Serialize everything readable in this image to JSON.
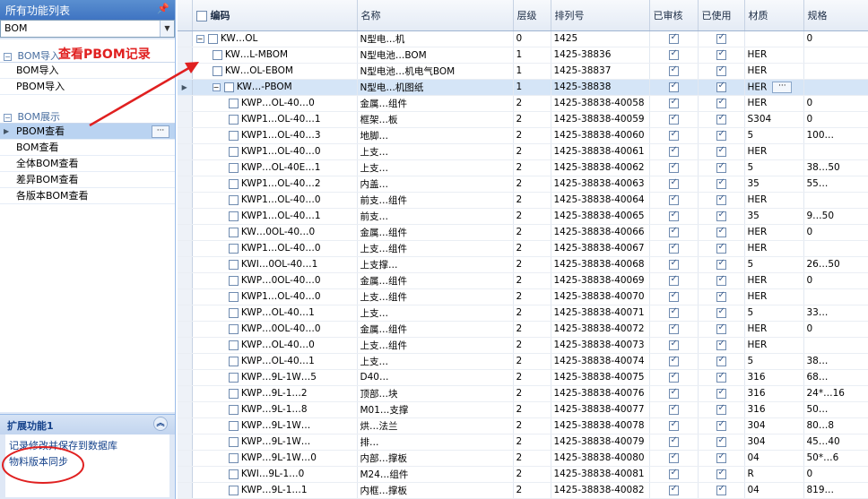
{
  "left_panel": {
    "title": "所有功能列表",
    "combo_value": "BOM",
    "group1": {
      "title": "BOM导入",
      "items": [
        "BOM导入",
        "PBOM导入"
      ]
    },
    "group2": {
      "title": "BOM展示",
      "items": [
        "PBOM查看",
        "BOM查看",
        "全体BOM查看",
        "差异BOM查看",
        "各版本BOM查看"
      ]
    },
    "ext": {
      "title": "扩展功能1",
      "links": [
        "记录修改并保存到数据库",
        "物料版本同步"
      ]
    }
  },
  "annotation": {
    "text": "查看PBOM记录",
    "color": "#e02020"
  },
  "grid": {
    "headers": [
      "编码",
      "名称",
      "层级",
      "排列号",
      "已审核",
      "已使用",
      "材质",
      "规格"
    ],
    "rows": [
      {
        "code": "KW…OL",
        "name": "N型电…机",
        "level": "0",
        "seq": "1425",
        "audited": true,
        "used": true,
        "material": "",
        "spec": "0",
        "depth": 0,
        "tree": "⊟"
      },
      {
        "code": "KW…L-MBOM",
        "name": "N型电池…BOM",
        "level": "1",
        "seq": "1425-38836",
        "audited": true,
        "used": true,
        "material": "HER",
        "spec": "",
        "depth": 1
      },
      {
        "code": "KW…OL-EBOM",
        "name": "N型电池…机电气BOM",
        "level": "1",
        "seq": "1425-38837",
        "audited": true,
        "used": true,
        "material": "HER",
        "spec": "",
        "depth": 1
      },
      {
        "code": "KW…-PBOM",
        "name": "N型电…机图纸",
        "level": "1",
        "seq": "1425-38838",
        "audited": true,
        "used": true,
        "material": "HER",
        "spec": "",
        "depth": 1,
        "tree": "⊟",
        "selected": true
      },
      {
        "code": "KWP…OL-40…0",
        "name": "金属…组件",
        "level": "2",
        "seq": "1425-38838-40058",
        "audited": true,
        "used": true,
        "material": "HER",
        "spec": "0",
        "depth": 2
      },
      {
        "code": "KWP1…OL-40…1",
        "name": "框架…板",
        "level": "2",
        "seq": "1425-38838-40059",
        "audited": true,
        "used": true,
        "material": "S304",
        "spec": "0",
        "depth": 2
      },
      {
        "code": "KWP1…OL-40…3",
        "name": "地脚…",
        "level": "2",
        "seq": "1425-38838-40060",
        "audited": true,
        "used": true,
        "material": "5",
        "spec": "100…",
        "depth": 2
      },
      {
        "code": "KWP1…OL-40…0",
        "name": "上支…",
        "level": "2",
        "seq": "1425-38838-40061",
        "audited": true,
        "used": true,
        "material": "HER",
        "spec": "",
        "depth": 2
      },
      {
        "code": "KWP…OL-40E…1",
        "name": "上支…",
        "level": "2",
        "seq": "1425-38838-40062",
        "audited": true,
        "used": true,
        "material": "5",
        "spec": "38…50",
        "depth": 2
      },
      {
        "code": "KWP1…OL-40…2",
        "name": "内盖…",
        "level": "2",
        "seq": "1425-38838-40063",
        "audited": true,
        "used": true,
        "material": "35",
        "spec": "55…",
        "depth": 2
      },
      {
        "code": "KWP1…OL-40…0",
        "name": "前支…组件",
        "level": "2",
        "seq": "1425-38838-40064",
        "audited": true,
        "used": true,
        "material": "HER",
        "spec": "",
        "depth": 2
      },
      {
        "code": "KWP1…OL-40…1",
        "name": "前支…",
        "level": "2",
        "seq": "1425-38838-40065",
        "audited": true,
        "used": true,
        "material": "35",
        "spec": "9…50",
        "depth": 2
      },
      {
        "code": "KW…0OL-40…0",
        "name": "金属…组件",
        "level": "2",
        "seq": "1425-38838-40066",
        "audited": true,
        "used": true,
        "material": "HER",
        "spec": "0",
        "depth": 2
      },
      {
        "code": "KWP1…OL-40…0",
        "name": "上支…组件",
        "level": "2",
        "seq": "1425-38838-40067",
        "audited": true,
        "used": true,
        "material": "HER",
        "spec": "",
        "depth": 2
      },
      {
        "code": "KWI…0OL-40…1",
        "name": "上支撑…",
        "level": "2",
        "seq": "1425-38838-40068",
        "audited": true,
        "used": true,
        "material": "5",
        "spec": "26…50",
        "depth": 2
      },
      {
        "code": "KWP…0OL-40…0",
        "name": "金属…组件",
        "level": "2",
        "seq": "1425-38838-40069",
        "audited": true,
        "used": true,
        "material": "HER",
        "spec": "0",
        "depth": 2
      },
      {
        "code": "KWP1…OL-40…0",
        "name": "上支…组件",
        "level": "2",
        "seq": "1425-38838-40070",
        "audited": true,
        "used": true,
        "material": "HER",
        "spec": "",
        "depth": 2
      },
      {
        "code": "KWP…OL-40…1",
        "name": "上支…",
        "level": "2",
        "seq": "1425-38838-40071",
        "audited": true,
        "used": true,
        "material": "5",
        "spec": "33…",
        "depth": 2
      },
      {
        "code": "KWP…0OL-40…0",
        "name": "金属…组件",
        "level": "2",
        "seq": "1425-38838-40072",
        "audited": true,
        "used": true,
        "material": "HER",
        "spec": "0",
        "depth": 2
      },
      {
        "code": "KWP…OL-40…0",
        "name": "上支…组件",
        "level": "2",
        "seq": "1425-38838-40073",
        "audited": true,
        "used": true,
        "material": "HER",
        "spec": "",
        "depth": 2
      },
      {
        "code": "KWP…OL-40…1",
        "name": "上支…",
        "level": "2",
        "seq": "1425-38838-40074",
        "audited": true,
        "used": true,
        "material": "5",
        "spec": "38…",
        "depth": 2
      },
      {
        "code": "KWP…9L-1W…5",
        "name": "D40…",
        "level": "2",
        "seq": "1425-38838-40075",
        "audited": true,
        "used": true,
        "material": "316",
        "spec": "68…",
        "depth": 2
      },
      {
        "code": "KWP…9L-1…2",
        "name": "顶部…块",
        "level": "2",
        "seq": "1425-38838-40076",
        "audited": true,
        "used": true,
        "material": "316",
        "spec": "24*…16",
        "depth": 2
      },
      {
        "code": "KWP…9L-1…8",
        "name": "M01…支撑",
        "level": "2",
        "seq": "1425-38838-40077",
        "audited": true,
        "used": true,
        "material": "316",
        "spec": "50…",
        "depth": 2
      },
      {
        "code": "KWP…9L-1W…",
        "name": "烘…法兰",
        "level": "2",
        "seq": "1425-38838-40078",
        "audited": true,
        "used": true,
        "material": "304",
        "spec": "80…8",
        "depth": 2
      },
      {
        "code": "KWP…9L-1W…",
        "name": "排…",
        "level": "2",
        "seq": "1425-38838-40079",
        "audited": true,
        "used": true,
        "material": "304",
        "spec": "45…40",
        "depth": 2
      },
      {
        "code": "KWP…9L-1W…0",
        "name": "内部…撑板",
        "level": "2",
        "seq": "1425-38838-40080",
        "audited": true,
        "used": true,
        "material": "04",
        "spec": "50*…6",
        "depth": 2
      },
      {
        "code": "KWI…9L-1…0",
        "name": "M24…组件",
        "level": "2",
        "seq": "1425-38838-40081",
        "audited": true,
        "used": true,
        "material": "R",
        "spec": "0",
        "depth": 2
      },
      {
        "code": "KWP…9L-1…1",
        "name": "内框…撑板",
        "level": "2",
        "seq": "1425-38838-40082",
        "audited": true,
        "used": true,
        "material": "04",
        "spec": "819…",
        "depth": 2
      }
    ]
  }
}
